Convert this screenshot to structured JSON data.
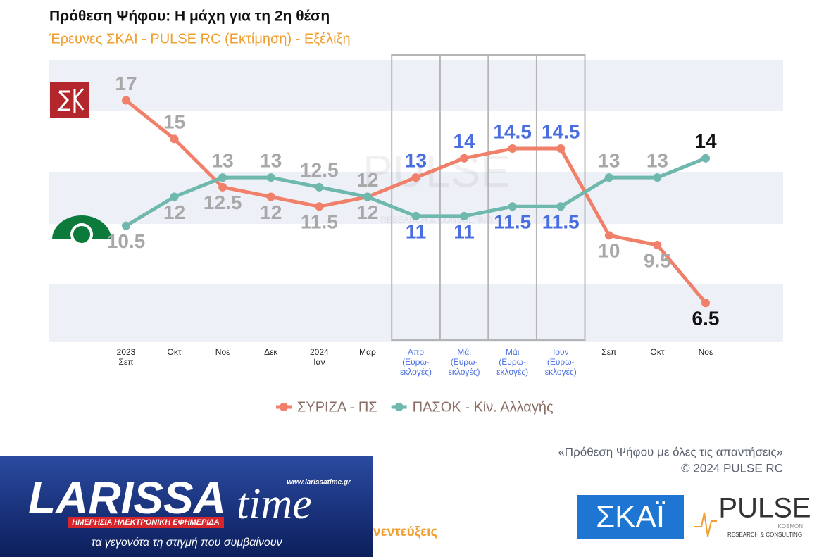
{
  "chart_data": {
    "type": "line",
    "title": "Πρόθεση Ψήφου: Η μάχη για τη 2η θέση",
    "subtitle": "Έρευνες ΣΚΑΪ - PULSE RC   (Εκτίμηση) - Εξέλιξη",
    "categories": [
      "2023\nΣεπ",
      "Οκτ",
      "Νοε",
      "Δεκ",
      "2024\nΙαν",
      "Μαρ",
      "Απρ\n(Ευρω-\nεκλογές)",
      "Μάι\n(Ευρω-\nεκλογές)",
      "Μάι\n(Ευρω-\nεκλογές)",
      "Ιουν\n(Ευρω-\nεκλογές)",
      "Σεπ",
      "Οκτ",
      "Νοε"
    ],
    "series": [
      {
        "name": "ΣΥΡΙΖΑ - ΠΣ",
        "color": "#f0806a",
        "values": [
          17,
          15,
          12.5,
          12,
          11.5,
          12,
          13,
          14,
          14.5,
          14.5,
          10,
          9.5,
          6.5
        ]
      },
      {
        "name": "ΠΑΣΟΚ - Κίν. Αλλαγής",
        "color": "#6fb8ad",
        "values": [
          10.5,
          12,
          13,
          13,
          12.5,
          12,
          11,
          11,
          11.5,
          11.5,
          13,
          13,
          14
        ]
      }
    ],
    "ylim": [
      4.5,
      19.1
    ]
  },
  "footer": {
    "note": "«Πρόθεση Ψήφου με όλες τις απαντήσεις»",
    "copyright": "©  2024  PULSE RC"
  },
  "logos": {
    "skai": "ΣΚΑΪ",
    "pulse": "PULSE",
    "pulse_sub": "RESEARCH & CONSULTING",
    "pulse_kosmon": "KOSMON"
  },
  "watermark": {
    "title": "PULSE",
    "sub": "RESEARCH & CONSULTING"
  },
  "banner": {
    "name1": "LARISSA",
    "name2": "time",
    "url": "www.larissatime.gr",
    "tagline": "ΗΜΕΡΗΣΙΑ ΗΛΕΚΤΡΟΝΙΚΗ ΕΦΗΜΕΡΙΔΑ",
    "slogan": "τα γεγονότα τη στιγμή που συμβαίνουν",
    "cut_text": "νεντεύξεις"
  }
}
